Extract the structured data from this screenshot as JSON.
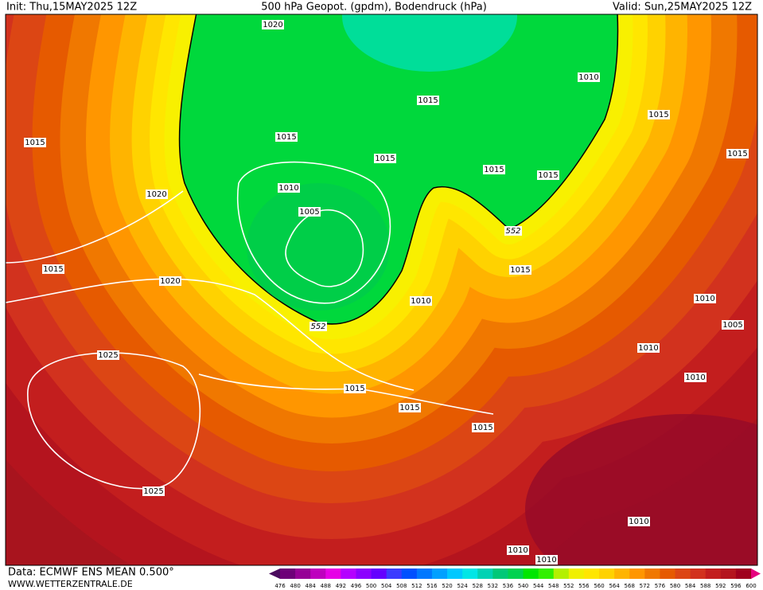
{
  "header": {
    "init": "Init: Thu,15MAY2025 12Z",
    "title": "500 hPa Geopot. (gpdm), Bodendruck (hPa)",
    "valid": "Valid: Sun,25MAY2025 12Z"
  },
  "isobar_labels": [
    "1020",
    "1010",
    "1015",
    "1015",
    "1015",
    "1015",
    "1015",
    "1015",
    "1015",
    "1015",
    "1020",
    "1010",
    "1005",
    "1015",
    "1020",
    "1015",
    "1010",
    "1010",
    "1005",
    "1010",
    "1010",
    "1025",
    "1015",
    "1015",
    "1015",
    "1025",
    "1010",
    "1010",
    "1010"
  ],
  "contour_labels": [
    "552",
    "552"
  ],
  "footer": {
    "source": "Data: ECMWF ENS MEAN 0.500°",
    "url": "WWW.WETTERZENTRALE.DE"
  },
  "colorbar": {
    "labels": [
      476,
      480,
      484,
      488,
      492,
      496,
      500,
      504,
      508,
      512,
      516,
      520,
      524,
      528,
      532,
      536,
      540,
      544,
      548,
      552,
      556,
      560,
      564,
      568,
      572,
      576,
      580,
      584,
      588,
      592,
      596,
      600
    ],
    "colors": [
      "#4a0a5e",
      "#6e0078",
      "#960096",
      "#be00be",
      "#e600e6",
      "#b400ff",
      "#8c00ff",
      "#6400ff",
      "#3c3cff",
      "#0050ff",
      "#0078ff",
      "#00a0ff",
      "#00c8ff",
      "#00e6e6",
      "#00d2b4",
      "#00c878",
      "#00d250",
      "#00e600",
      "#32f000",
      "#b4f000",
      "#f0f000",
      "#ffe600",
      "#ffd200",
      "#ffb400",
      "#ff9600",
      "#f07800",
      "#e65a00",
      "#dc4614",
      "#d2321e",
      "#c31e1e",
      "#b4141e",
      "#a0001e",
      "#e6007e"
    ]
  }
}
